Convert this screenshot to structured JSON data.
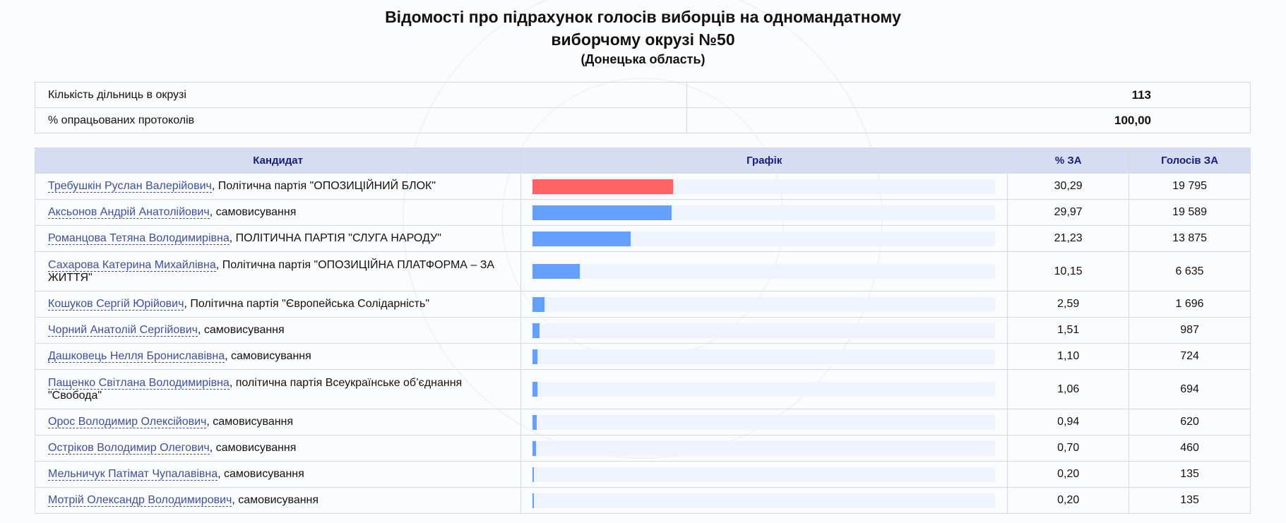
{
  "title_line1": "Відомості про підрахунок голосів виборців на одномандатному",
  "title_line2": "виборчому окрузі №50",
  "region": "(Донецька область)",
  "info": [
    {
      "label": "Кількість дільниць в окрузі",
      "value": "113"
    },
    {
      "label": "% опрацьованих протоколів",
      "value": "100,00"
    }
  ],
  "headers": {
    "candidate": "Кандидат",
    "chart": "Графік",
    "percent": "% ЗА",
    "votes": "Голосів ЗА"
  },
  "colors": {
    "leader_bar": "#ff6464",
    "bar": "#64a0ff",
    "track": "#eef3fd",
    "header_bg": "#d6ddf2"
  },
  "candidates": [
    {
      "name": "Требушкін Руслан Валерійович",
      "party": ", Політична партія \"ОПОЗИЦІЙНИЙ БЛОК\"",
      "percent": "30,29",
      "pct": 30.29,
      "votes": "19 795",
      "leader": true
    },
    {
      "name": "Аксьонов Андрій Анатолійович",
      "party": ", самовисування",
      "percent": "29,97",
      "pct": 29.97,
      "votes": "19 589"
    },
    {
      "name": "Романцова Тетяна Володимирівна",
      "party": ", ПОЛІТИЧНА ПАРТІЯ \"СЛУГА НАРОДУ\"",
      "percent": "21,23",
      "pct": 21.23,
      "votes": "13 875"
    },
    {
      "name": "Сахарова Катерина Михайлівна",
      "party": ", Політична партія \"ОПОЗИЦІЙНА ПЛАТФОРМА – ЗА ЖИТТЯ\"",
      "percent": "10,15",
      "pct": 10.15,
      "votes": "6 635",
      "tall": true
    },
    {
      "name": "Кошуков Сергій Юрійович",
      "party": ", Політична партія \"Європейська Солідарність\"",
      "percent": "2,59",
      "pct": 2.59,
      "votes": "1 696"
    },
    {
      "name": "Чорний Анатолій Сергійович",
      "party": ", самовисування",
      "percent": "1,51",
      "pct": 1.51,
      "votes": "987"
    },
    {
      "name": "Дашковець Нелля Брониславівна",
      "party": ", самовисування",
      "percent": "1,10",
      "pct": 1.1,
      "votes": "724"
    },
    {
      "name": "Пащенко Світлана Володимирівна",
      "party": ", політична партія Всеукраїнське об’єднання \"Свобода\"",
      "percent": "1,06",
      "pct": 1.06,
      "votes": "694",
      "tall": true
    },
    {
      "name": "Орос Володимир Олексійович",
      "party": ", самовисування",
      "percent": "0,94",
      "pct": 0.94,
      "votes": "620"
    },
    {
      "name": "Острiков Володимир Олегович",
      "party": ", самовисування",
      "percent": "0,70",
      "pct": 0.7,
      "votes": "460"
    },
    {
      "name": "Мельничук Патімат Чупалавівна",
      "party": ", самовисування",
      "percent": "0,20",
      "pct": 0.2,
      "votes": "135"
    },
    {
      "name": "Мотрій Олександр Володимирович",
      "party": ", самовисування",
      "percent": "0,20",
      "pct": 0.2,
      "votes": "135"
    }
  ]
}
